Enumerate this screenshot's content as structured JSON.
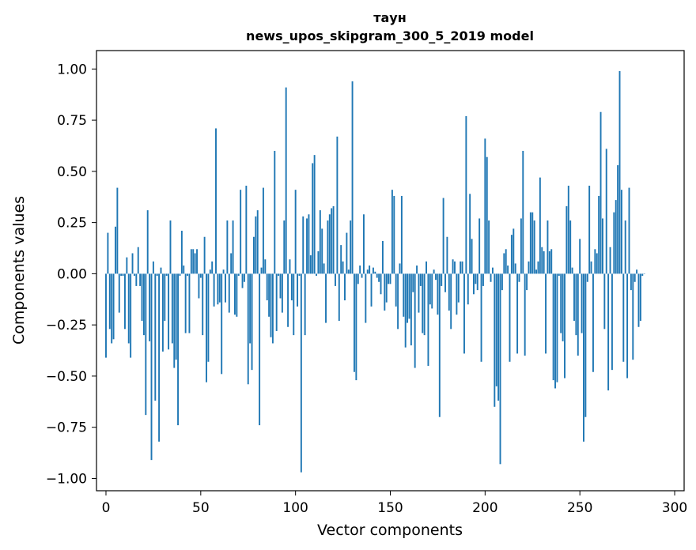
{
  "chart_data": {
    "type": "bar",
    "title": "таун",
    "subtitle": "news_upos_skipgram_300_5_2019 model",
    "xlabel": "Vector components",
    "ylabel": "Components values",
    "xlim": [
      -5,
      305
    ],
    "ylim": [
      -1.06,
      1.09
    ],
    "xticks": [
      0,
      50,
      100,
      150,
      200,
      250,
      300
    ],
    "yticks": [
      -1.0,
      -0.75,
      -0.5,
      -0.25,
      0.0,
      0.25,
      0.5,
      0.75,
      1.0
    ],
    "xtick_labels": [
      "0",
      "50",
      "100",
      "150",
      "200",
      "250",
      "300"
    ],
    "ytick_labels": [
      "−1.00",
      "−0.75",
      "−0.50",
      "−0.25",
      "0.00",
      "0.25",
      "0.50",
      "0.75",
      "1.00"
    ],
    "bar_color": "#1f77b4",
    "values": [
      -0.41,
      0.2,
      -0.27,
      -0.34,
      -0.32,
      0.23,
      0.42,
      -0.19,
      -0.01,
      -0.01,
      -0.27,
      0.08,
      -0.34,
      -0.41,
      0.1,
      -0.01,
      -0.06,
      0.13,
      -0.06,
      -0.23,
      -0.3,
      -0.69,
      0.31,
      -0.33,
      -0.91,
      0.06,
      -0.62,
      -0.01,
      -0.82,
      0.03,
      -0.38,
      -0.23,
      -0.01,
      -0.37,
      0.26,
      -0.34,
      -0.46,
      -0.42,
      -0.74,
      -0.01,
      0.21,
      0.04,
      -0.29,
      -0.01,
      -0.29,
      0.12,
      0.12,
      0.1,
      0.12,
      -0.12,
      -0.02,
      -0.3,
      0.18,
      -0.53,
      -0.43,
      0.02,
      0.06,
      -0.16,
      0.71,
      -0.15,
      -0.14,
      -0.49,
      0.02,
      -0.14,
      0.26,
      -0.19,
      0.1,
      0.26,
      -0.2,
      -0.21,
      -0.01,
      0.41,
      -0.07,
      -0.04,
      0.43,
      -0.54,
      -0.34,
      -0.47,
      0.18,
      0.28,
      0.31,
      -0.74,
      0.03,
      0.42,
      0.07,
      -0.13,
      -0.21,
      -0.31,
      -0.34,
      0.6,
      -0.28,
      -0.01,
      -0.12,
      -0.19,
      0.26,
      0.91,
      -0.26,
      0.07,
      -0.13,
      -0.3,
      0.41,
      -0.16,
      -0.01,
      -0.97,
      0.28,
      -0.3,
      0.27,
      0.29,
      0.09,
      0.54,
      0.58,
      -0.01,
      0.11,
      0.31,
      0.22,
      0.05,
      -0.24,
      0.26,
      0.29,
      0.32,
      0.33,
      -0.06,
      0.67,
      -0.23,
      0.14,
      0.06,
      -0.13,
      0.2,
      0.02,
      0.26,
      0.94,
      -0.48,
      -0.52,
      -0.05,
      0.04,
      -0.02,
      0.29,
      -0.24,
      0.02,
      0.04,
      -0.16,
      0.03,
      0.01,
      -0.02,
      -0.04,
      -0.1,
      0.16,
      -0.18,
      -0.14,
      -0.05,
      -0.05,
      0.41,
      0.38,
      -0.16,
      -0.27,
      0.05,
      0.38,
      -0.21,
      -0.36,
      -0.24,
      -0.22,
      -0.35,
      -0.09,
      -0.46,
      0.04,
      -0.19,
      -0.06,
      -0.29,
      -0.3,
      0.06,
      -0.45,
      -0.15,
      -0.17,
      0.02,
      -0.03,
      -0.2,
      -0.7,
      -0.06,
      0.37,
      -0.09,
      0.18,
      -0.18,
      -0.27,
      0.07,
      0.06,
      -0.2,
      -0.14,
      0.06,
      0.06,
      -0.39,
      0.77,
      -0.15,
      0.39,
      0.17,
      -0.1,
      -0.05,
      -0.08,
      0.27,
      -0.43,
      -0.06,
      0.66,
      0.57,
      0.26,
      -0.04,
      0.03,
      -0.65,
      -0.55,
      -0.62,
      -0.93,
      -0.08,
      0.1,
      0.12,
      0.04,
      -0.43,
      0.19,
      0.22,
      0.05,
      -0.39,
      -0.04,
      0.27,
      0.6,
      -0.4,
      -0.08,
      0.06,
      0.3,
      0.3,
      0.26,
      0.02,
      0.06,
      0.47,
      0.13,
      0.11,
      -0.39,
      0.26,
      0.11,
      0.12,
      -0.52,
      -0.56,
      -0.53,
      -0.01,
      -0.29,
      -0.33,
      -0.51,
      0.33,
      0.43,
      0.26,
      0.03,
      -0.23,
      -0.3,
      -0.4,
      0.17,
      -0.29,
      -0.82,
      -0.7,
      -0.04,
      0.43,
      0.06,
      -0.48,
      0.12,
      0.1,
      0.38,
      0.79,
      0.27,
      -0.27,
      0.61,
      -0.57,
      0.13,
      -0.47,
      0.3,
      0.36,
      0.53,
      0.99,
      0.41,
      -0.43,
      0.26,
      -0.51,
      0.42,
      -0.08,
      -0.42,
      -0.04,
      0.02,
      -0.26,
      -0.23,
      -0.01,
      0.0
    ]
  }
}
